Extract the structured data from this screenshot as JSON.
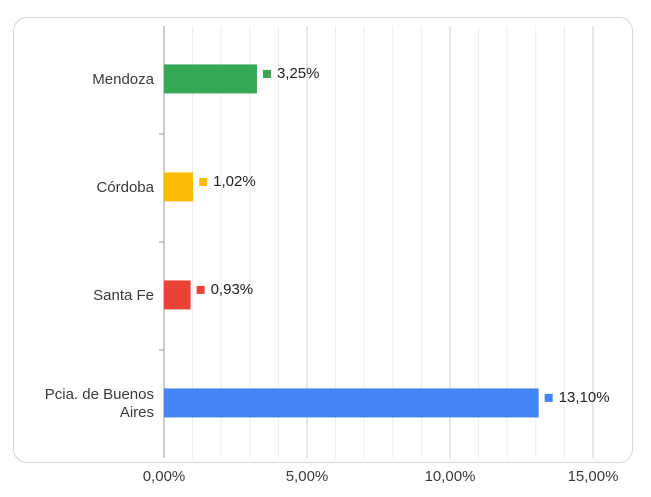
{
  "chart_data": {
    "type": "bar",
    "orientation": "horizontal",
    "categories": [
      "Mendoza",
      "Córdoba",
      "Santa Fe",
      "Pcia. de Buenos Aires"
    ],
    "category_display": [
      [
        "Mendoza"
      ],
      [
        "Córdoba"
      ],
      [
        "Santa Fe"
      ],
      [
        "Pcia. de Buenos",
        "Aires"
      ]
    ],
    "values": [
      3.25,
      1.02,
      0.93,
      13.1
    ],
    "data_labels": [
      "3,25%",
      "1,02%",
      "0,93%",
      "13,10%"
    ],
    "colors": [
      "#34a853",
      "#fbbc04",
      "#ea4335",
      "#4285f4"
    ],
    "xlim": [
      0,
      15
    ],
    "x_ticks": [
      0,
      5,
      10,
      15
    ],
    "x_tick_labels": [
      "0,00%",
      "5,00%",
      "10,00%",
      "15,00%"
    ],
    "minor_gridlines_per_major": 5,
    "grid": true,
    "legend": "none",
    "title": "",
    "xlabel": "",
    "ylabel": ""
  }
}
